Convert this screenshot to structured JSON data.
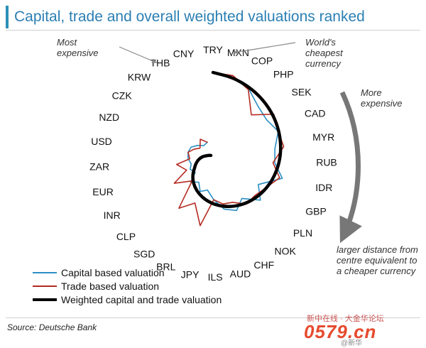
{
  "title": "Capital, trade and overall weighted valuations ranked",
  "source": "Source: Deutsche Bank",
  "watermark": {
    "line1": "新中在线 · 大金华论坛",
    "line2": "0579.cn",
    "line3": "@新华"
  },
  "chart_data": {
    "type": "line",
    "subtype": "spiral-rank",
    "currencies": [
      "TRY",
      "MXN",
      "COP",
      "PHP",
      "SEK",
      "CAD",
      "MYR",
      "RUB",
      "IDR",
      "GBP",
      "PLN",
      "NOK",
      "CHF",
      "AUD",
      "ILS",
      "JPY",
      "BRL",
      "SGD",
      "CLP",
      "INR",
      "EUR",
      "ZAR",
      "USD",
      "NZD",
      "CZK",
      "KRW",
      "THB",
      "CNY"
    ],
    "annotations": {
      "most_expensive": "Most expensive",
      "cheapest": "World's cheapest currency",
      "more_expensive": "More expensive",
      "distance_note": "larger distance from centre equivalent to a cheaper currency"
    },
    "series": [
      {
        "name": "Capital based valuation",
        "color": "#2b8fc4",
        "values": [
          1.0,
          0.97,
          0.91,
          0.8,
          0.76,
          0.8,
          0.7,
          0.68,
          0.78,
          0.55,
          0.66,
          0.5,
          0.58,
          0.52,
          0.4,
          0.3,
          0.34,
          0.26,
          0.32,
          0.22,
          0.26,
          0.24,
          0.28,
          0.3,
          0.3,
          0.26,
          0.22,
          0.24
        ]
      },
      {
        "name": "Trade based valuation",
        "color": "#b52a22",
        "values": [
          1.0,
          0.99,
          0.9,
          0.68,
          0.86,
          0.8,
          0.8,
          0.66,
          0.75,
          0.64,
          0.58,
          0.58,
          0.48,
          0.46,
          0.4,
          0.7,
          0.48,
          0.62,
          0.3,
          0.48,
          0.3,
          0.4,
          0.26,
          0.3,
          0.26,
          0.22,
          0.3,
          0.24
        ]
      },
      {
        "name": "Weighted capital and trade valuation",
        "color": "#000000",
        "values": [
          1.0,
          0.97,
          0.93,
          0.89,
          0.85,
          0.81,
          0.77,
          0.73,
          0.69,
          0.65,
          0.61,
          0.57,
          0.53,
          0.49,
          0.45,
          0.41,
          0.37,
          0.33,
          0.29,
          0.25,
          0.21,
          0.19,
          0.17,
          0.15,
          0.13,
          0.11,
          0.1,
          0.09
        ]
      }
    ]
  }
}
